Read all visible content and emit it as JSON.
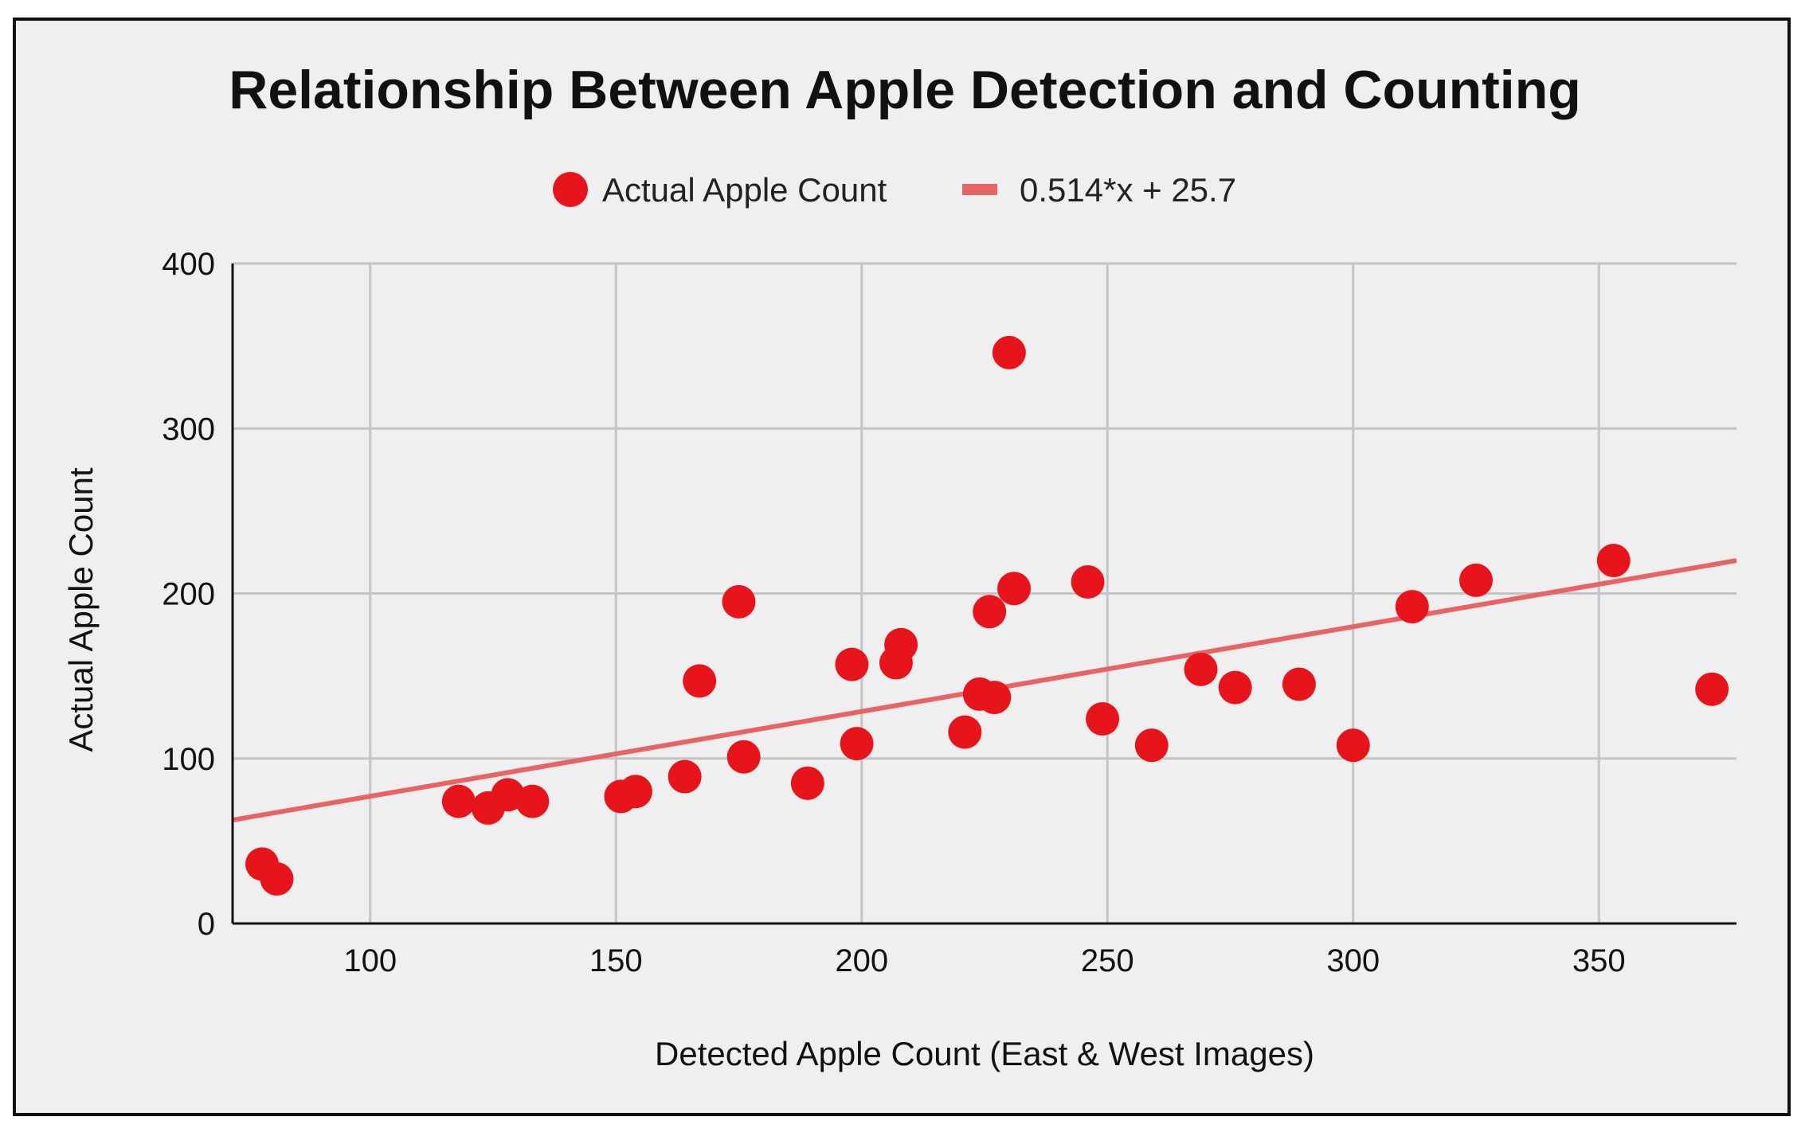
{
  "chart_data": {
    "type": "scatter",
    "title": "Relationship Between Apple Detection and Counting",
    "xlabel": "Detected Apple Count (East & West Images)",
    "ylabel": "Actual Apple Count",
    "xlim": [
      72,
      378
    ],
    "ylim": [
      0,
      400
    ],
    "x_ticks": [
      100,
      150,
      200,
      250,
      300,
      350
    ],
    "y_ticks": [
      0,
      100,
      200,
      300,
      400
    ],
    "grid": true,
    "legend_position": "top",
    "series": [
      {
        "name": "Actual Apple Count",
        "color": "#e8141c",
        "points": [
          [
            78,
            36
          ],
          [
            81,
            27
          ],
          [
            118,
            74
          ],
          [
            124,
            70
          ],
          [
            128,
            78
          ],
          [
            133,
            74
          ],
          [
            151,
            77
          ],
          [
            154,
            80
          ],
          [
            164,
            89
          ],
          [
            167,
            147
          ],
          [
            175,
            195
          ],
          [
            176,
            101
          ],
          [
            189,
            85
          ],
          [
            198,
            157
          ],
          [
            199,
            109
          ],
          [
            207,
            158
          ],
          [
            208,
            169
          ],
          [
            221,
            116
          ],
          [
            224,
            139
          ],
          [
            226,
            189
          ],
          [
            227,
            137
          ],
          [
            230,
            346
          ],
          [
            231,
            203
          ],
          [
            246,
            207
          ],
          [
            249,
            124
          ],
          [
            259,
            108
          ],
          [
            269,
            154
          ],
          [
            276,
            143
          ],
          [
            289,
            145
          ],
          [
            300,
            108
          ],
          [
            312,
            192
          ],
          [
            325,
            208
          ],
          [
            353,
            220
          ],
          [
            373,
            142
          ]
        ]
      }
    ],
    "trendline": {
      "name": "0.514*x + 25.7",
      "color": "#e86464",
      "slope": 0.514,
      "intercept": 25.7
    }
  }
}
